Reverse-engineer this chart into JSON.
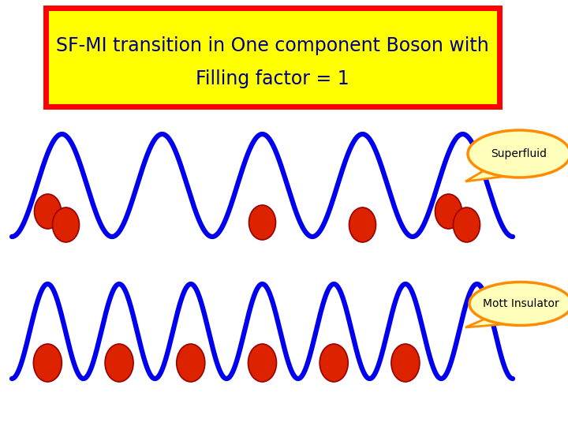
{
  "title_line1": "SF-MI transition in One component Boson with",
  "title_line2": "Filling factor = 1",
  "title_bg": "#FFFF00",
  "title_border": "#FF0000",
  "title_text_color": "#00008B",
  "wave_color": "#0000EE",
  "dot_color": "#DD2200",
  "dot_edge": "#990000",
  "bubble_bg": "#FFFFBB",
  "bubble_border": "#FF8C00",
  "bg_color": "#FFFFFF",
  "sf_label": "Superfluid",
  "mi_label": "Mott Insulator",
  "title_fontsize": 17,
  "label_fontsize": 10
}
